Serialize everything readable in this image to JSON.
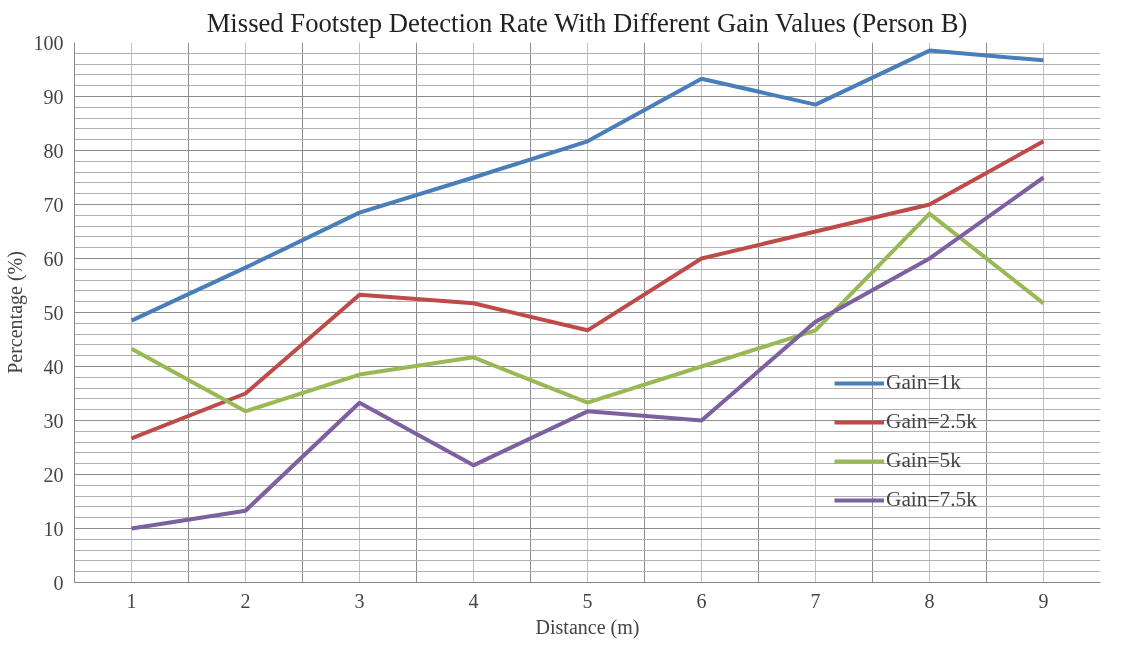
{
  "chart_data": {
    "type": "line",
    "title": "Missed Footstep Detection Rate With Different Gain Values (Person B)",
    "xlabel": "Distance (m)",
    "ylabel": "Percentage (%)",
    "categories": [
      "1",
      "2",
      "3",
      "4",
      "5",
      "6",
      "7",
      "8",
      "9"
    ],
    "series": [
      {
        "name": "Gain=1k",
        "color": "#4a7ebb",
        "values": [
          48.5,
          58.3,
          68.5,
          75,
          81.7,
          93.3,
          88.5,
          98.5,
          96.7
        ]
      },
      {
        "name": "Gain=2.5k",
        "color": "#be4b48",
        "values": [
          26.7,
          35,
          53.3,
          51.7,
          46.7,
          60,
          65,
          70,
          81.7
        ]
      },
      {
        "name": "Gain=5k",
        "color": "#98b954",
        "values": [
          43.3,
          31.7,
          38.5,
          41.7,
          33.3,
          40,
          46.7,
          68.3,
          51.7
        ]
      },
      {
        "name": "Gain=7.5k",
        "color": "#7d60a0",
        "values": [
          10,
          13.3,
          33.3,
          21.7,
          31.7,
          30,
          48.3,
          60,
          75
        ]
      }
    ],
    "ylim": [
      0,
      100
    ],
    "yticks": [
      0,
      10,
      20,
      30,
      40,
      50,
      60,
      70,
      80,
      90,
      100
    ],
    "grid": true,
    "legend": "right",
    "marker": "none",
    "line_style": "solid"
  }
}
